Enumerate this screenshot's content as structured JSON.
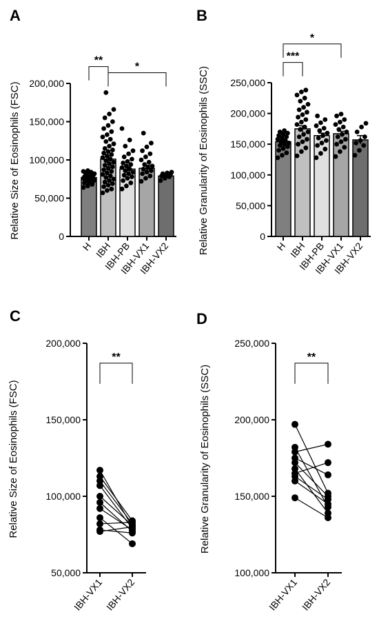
{
  "panels": [
    {
      "letter": "A",
      "chart_data": {
        "type": "bar",
        "ylabel": "Relative Size of Eosinophils (FSC)",
        "ylim": [
          0,
          200000
        ],
        "yticks": [
          0,
          50000,
          100000,
          150000,
          200000
        ],
        "ytick_labels": [
          "0",
          "50,000",
          "100,000",
          "150,000",
          "200,000"
        ],
        "categories": [
          "H",
          "IBH",
          "IBH-PB",
          "IBH-VX1",
          "IBH-VX2"
        ],
        "values": [
          77000,
          101000,
          88000,
          89000,
          79000
        ],
        "errors": [
          2000,
          4000,
          3000,
          4000,
          1500
        ],
        "bar_colors": [
          "#7f7f7f",
          "#c0c0c0",
          "#e0e0e0",
          "#a6a6a6",
          "#6e6e6e"
        ],
        "points": [
          [
            64000,
            66000,
            68000,
            70000,
            71000,
            72000,
            73000,
            74000,
            74000,
            75000,
            76000,
            76000,
            77000,
            78000,
            78000,
            79000,
            80000,
            80000,
            81000,
            82000,
            83000,
            84000,
            85000,
            86000
          ],
          [
            57000,
            60000,
            62000,
            65000,
            67000,
            69000,
            71000,
            73000,
            75000,
            77000,
            79000,
            81000,
            83000,
            85000,
            87000,
            89000,
            91000,
            93000,
            95000,
            97000,
            99000,
            101000,
            103000,
            105000,
            107000,
            109000,
            111000,
            113000,
            115000,
            118000,
            121000,
            124000,
            127000,
            130000,
            133000,
            137000,
            141000,
            145000,
            150000,
            155000,
            160000,
            166000,
            188000
          ],
          [
            62000,
            66000,
            70000,
            73000,
            76000,
            78000,
            80000,
            82000,
            84000,
            86000,
            88000,
            90000,
            92000,
            94000,
            96000,
            98000,
            101000,
            104000,
            108000,
            112000,
            118000,
            126000,
            141000
          ],
          [
            72000,
            76000,
            79000,
            82000,
            84000,
            86000,
            88000,
            90000,
            92000,
            94000,
            97000,
            100000,
            104000,
            108000,
            112000,
            117000,
            122000,
            135000
          ],
          [
            73000,
            76000,
            78000,
            79000,
            80000,
            81000,
            82000,
            83000,
            84000
          ]
        ],
        "sig": [
          {
            "from": 0,
            "to": 1,
            "label": "**",
            "level": 222000
          },
          {
            "from": 1,
            "to": 4,
            "label": "*",
            "level": 214000
          }
        ]
      }
    },
    {
      "letter": "B",
      "chart_data": {
        "type": "bar",
        "ylabel": "Relative Granularity of Eosinophils (SSC)",
        "ylim": [
          0,
          250000
        ],
        "yticks": [
          0,
          50000,
          100000,
          150000,
          200000,
          250000
        ],
        "ytick_labels": [
          "0",
          "50,000",
          "100,000",
          "150,000",
          "200,000",
          "250,000"
        ],
        "categories": [
          "H",
          "IBH",
          "IBH-PB",
          "IBH-VX1",
          "IBH-VX2"
        ],
        "values": [
          154000,
          175000,
          164000,
          167000,
          157000
        ],
        "errors": [
          3000,
          5000,
          4000,
          4000,
          7000
        ],
        "bar_colors": [
          "#7f7f7f",
          "#c0c0c0",
          "#e0e0e0",
          "#a6a6a6",
          "#6e6e6e"
        ],
        "points": [
          [
            128000,
            132000,
            136000,
            140000,
            143000,
            146000,
            148000,
            150000,
            152000,
            154000,
            156000,
            158000,
            160000,
            162000,
            164000,
            166000,
            168000,
            170000,
            172000
          ],
          [
            131000,
            138000,
            144000,
            150000,
            154000,
            158000,
            162000,
            166000,
            170000,
            174000,
            178000,
            182000,
            186000,
            190000,
            194000,
            198000,
            202000,
            206000,
            210000,
            215000,
            220000,
            225000,
            230000,
            235000,
            238000
          ],
          [
            128000,
            135000,
            142000,
            148000,
            152000,
            156000,
            160000,
            164000,
            168000,
            172000,
            176000,
            180000,
            185000,
            190000,
            196000
          ],
          [
            130000,
            138000,
            145000,
            150000,
            154000,
            158000,
            162000,
            166000,
            170000,
            174000,
            178000,
            182000,
            186000,
            190000,
            196000,
            199000
          ],
          [
            132000,
            140000,
            148000,
            152000,
            156000,
            162000,
            170000,
            178000,
            184000
          ]
        ],
        "sig": [
          {
            "from": 0,
            "to": 1,
            "label": "***",
            "level": 283000
          },
          {
            "from": 0,
            "to": 3,
            "label": "*",
            "level": 313000
          }
        ]
      }
    },
    {
      "letter": "C",
      "chart_data": {
        "type": "line",
        "ylabel": "Relative Size of Eosinophils (FSC)",
        "ylim": [
          50000,
          200000
        ],
        "yticks": [
          50000,
          100000,
          150000,
          200000
        ],
        "ytick_labels": [
          "50,000",
          "100,000",
          "150,000",
          "200,000"
        ],
        "categories": [
          "IBH-VX1",
          "IBH-VX2"
        ],
        "pairs": [
          [
            117000,
            80000
          ],
          [
            113000,
            84000
          ],
          [
            110000,
            82000
          ],
          [
            107000,
            79000
          ],
          [
            100000,
            81000
          ],
          [
            96000,
            77000
          ],
          [
            92000,
            78000
          ],
          [
            86000,
            69000
          ],
          [
            82000,
            83000
          ],
          [
            78000,
            76000
          ],
          [
            77000,
            80000
          ]
        ],
        "sig": [
          {
            "from": 0,
            "to": 1,
            "label": "**",
            "level": 187000
          }
        ]
      }
    },
    {
      "letter": "D",
      "chart_data": {
        "type": "line",
        "ylabel": "Relative Granularity of Eosinophils (SSC)",
        "ylim": [
          100000,
          250000
        ],
        "yticks": [
          100000,
          150000,
          200000,
          250000
        ],
        "ytick_labels": [
          "100,000",
          "150,000",
          "200,000",
          "250,000"
        ],
        "categories": [
          "IBH-VX1",
          "IBH-VX2"
        ],
        "pairs": [
          [
            197000,
            152000
          ],
          [
            182000,
            143000
          ],
          [
            179000,
            184000
          ],
          [
            175000,
            164000
          ],
          [
            172000,
            150000
          ],
          [
            168000,
            139000
          ],
          [
            165000,
            172000
          ],
          [
            163000,
            148000
          ],
          [
            160000,
            145000
          ],
          [
            149000,
            136000
          ]
        ],
        "sig": [
          {
            "from": 0,
            "to": 1,
            "label": "**",
            "level": 237000
          }
        ]
      }
    }
  ]
}
